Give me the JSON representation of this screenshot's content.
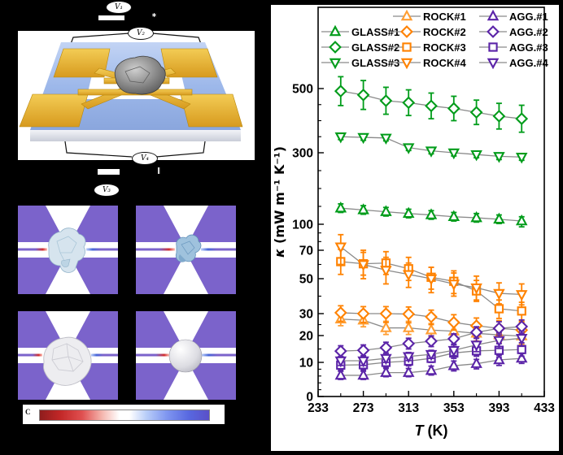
{
  "panel_a": {
    "description": "suspended micro-device schematic",
    "voltage_labels": {
      "v1": "V₁",
      "v2": "V₂",
      "v3": "V₃",
      "v4": "V₄"
    },
    "marks": {
      "top": "∗",
      "bottom": "‖"
    },
    "colors": {
      "substrate": "#9db8ea",
      "substrate_light": "#c3d4f4",
      "electrode": "#e2a62b",
      "electrode_light": "#f3cc55"
    }
  },
  "panel_b": {
    "description": "heat-flow simulation cells",
    "bowtie_color": "#7b63cb",
    "hot_color": "#d23030",
    "cold_color": "#4868d8",
    "cells": [
      {
        "shape": "chunk-a",
        "label": "irregular chunk on beam"
      },
      {
        "shape": "chunk-b",
        "label": "small chunk on beam"
      },
      {
        "shape": "ball",
        "label": "large crumpled aggregate"
      },
      {
        "shape": "sphere",
        "label": "smooth sphere"
      }
    ],
    "colorbar": {
      "label": "C",
      "left_color": "#8f1d1d",
      "mid_color": "#ffffff",
      "right_color": "#5a50c8"
    }
  },
  "chart_data": {
    "type": "scatter",
    "x": [
      253,
      273,
      293,
      313,
      333,
      353,
      373,
      393,
      413
    ],
    "xlim": [
      233,
      433
    ],
    "x_ticks": [
      233,
      273,
      313,
      353,
      393,
      433
    ],
    "x_minor_ticks": [
      253,
      293,
      333,
      373,
      413
    ],
    "y_ticks": [
      0,
      10,
      20,
      30,
      50,
      70,
      100,
      300,
      500
    ],
    "y_minor_ticks": [
      2,
      4,
      6,
      8,
      15,
      25,
      40,
      60,
      80,
      90,
      150,
      200,
      250,
      350,
      400,
      450
    ],
    "y_scale": "origin-style compressed log-like",
    "xlabel": {
      "symbol": "T",
      "unit": " (K)"
    },
    "ylabel": {
      "symbol": "κ",
      "unit": " (mW m⁻¹ K⁻¹)"
    },
    "grid": false,
    "legend_position": "top-inside",
    "legend_grid": [
      [
        "",
        "ROCK#1",
        "AGG.#1"
      ],
      [
        "GLASS#1",
        "ROCK#2",
        "AGG.#2"
      ],
      [
        "GLASS#2",
        "ROCK#3",
        "AGG.#3"
      ],
      [
        "GLASS#3",
        "ROCK#4",
        "AGG.#4"
      ]
    ],
    "series": [
      {
        "name": "GLASS#1",
        "marker": "triangle-up",
        "color": "#009C1A",
        "values": [
          145,
          140,
          135,
          130,
          126,
          121,
          118,
          114,
          109
        ],
        "errors": [
          12,
          12,
          12,
          12,
          12,
          12,
          12,
          12,
          12
        ]
      },
      {
        "name": "GLASS#2",
        "marker": "diamond",
        "color": "#009C1A",
        "values": [
          492,
          480,
          462,
          456,
          446,
          438,
          426,
          414,
          406
        ],
        "errors": [
          45,
          45,
          42,
          40,
          40,
          38,
          38,
          40,
          42
        ]
      },
      {
        "name": "GLASS#3",
        "marker": "triangle-down",
        "color": "#009C1A",
        "values": [
          350,
          348,
          346,
          316,
          306,
          300,
          295,
          290,
          288
        ],
        "errors": [
          9,
          9,
          9,
          9,
          9,
          9,
          9,
          9,
          9
        ]
      },
      {
        "name": "ROCK#1",
        "marker": "triangle-up",
        "color": "#FF9E33",
        "values": [
          27.5,
          27,
          23.5,
          23.5,
          22.5,
          22,
          21,
          20.3,
          19.8
        ],
        "errors": [
          3,
          3,
          3,
          3,
          3,
          3,
          3,
          3,
          3
        ]
      },
      {
        "name": "ROCK#2",
        "marker": "diamond",
        "color": "#FF8200",
        "values": [
          30.5,
          30,
          30,
          29.8,
          28.5,
          26,
          24.5,
          23.3,
          22.5
        ],
        "errors": [
          4,
          4,
          4,
          4,
          3.5,
          3.5,
          3.5,
          3.5,
          3.5
        ]
      },
      {
        "name": "ROCK#3",
        "marker": "square",
        "color": "#FF8200",
        "values": [
          62,
          60.5,
          61,
          57,
          51,
          48.5,
          43,
          32.8,
          31.5
        ],
        "errors": [
          9,
          8,
          8,
          8,
          7,
          7,
          6,
          5,
          5
        ]
      },
      {
        "name": "ROCK#4",
        "marker": "triangle-down",
        "color": "#FF8200",
        "values": [
          74,
          60,
          56,
          53,
          50,
          47,
          44.8,
          41.6,
          41
        ],
        "errors": [
          14,
          10,
          9,
          8,
          8,
          7,
          7,
          6,
          6
        ]
      },
      {
        "name": "AGG.#1",
        "marker": "triangle-up",
        "color": "#5B24A8",
        "values": [
          6.2,
          6.2,
          7,
          7,
          7.6,
          9,
          9.6,
          10.9,
          11.5
        ],
        "errors": [
          1.2,
          1.2,
          1.2,
          1.2,
          1.3,
          1.5,
          1.5,
          1.8,
          1.8
        ]
      },
      {
        "name": "AGG.#2",
        "marker": "diamond",
        "color": "#5B24A8",
        "values": [
          14.2,
          14.5,
          15.5,
          17,
          17.9,
          18.8,
          21.5,
          23.3,
          24.1
        ],
        "errors": [
          2,
          2,
          2,
          2,
          2,
          2,
          2.5,
          3,
          3
        ]
      },
      {
        "name": "AGG.#3",
        "marker": "square",
        "color": "#5B24A8",
        "values": [
          9.2,
          9.3,
          10,
          10.5,
          11.5,
          13.5,
          14.3,
          14.5,
          14.8
        ],
        "errors": [
          1.5,
          1.5,
          1.5,
          1.5,
          1.5,
          2,
          2,
          2.5,
          2.5
        ]
      },
      {
        "name": "AGG.#4",
        "marker": "triangle-down",
        "color": "#5B24A8",
        "values": [
          10.6,
          10.6,
          11.5,
          12.2,
          13,
          14.5,
          16.5,
          18.2,
          19
        ],
        "errors": [
          1.5,
          1.5,
          1.5,
          1.5,
          1.5,
          2,
          2.5,
          3,
          3
        ]
      }
    ]
  }
}
